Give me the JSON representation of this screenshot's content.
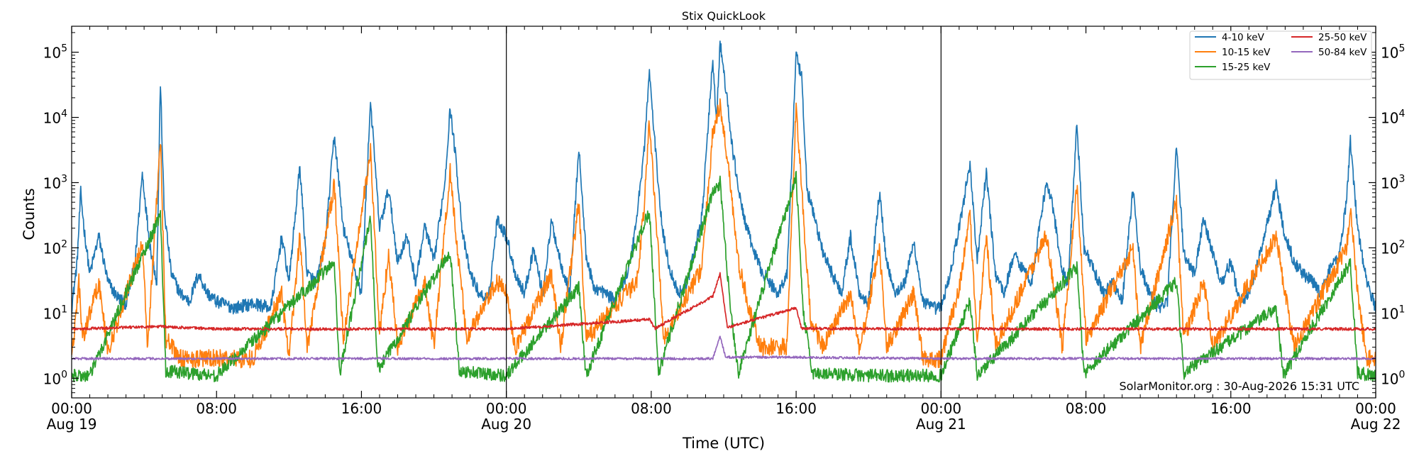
{
  "chart_data": {
    "type": "line",
    "title": "Stix QuickLook",
    "xlabel": "Time (UTC)",
    "ylabel": "Counts",
    "yscale": "log",
    "ylim": [
      0.5,
      250000
    ],
    "xlim_hours": [
      0,
      72
    ],
    "grid": false,
    "legend_position": "top-right",
    "x_ticks": [
      {
        "h": 0,
        "time": "00:00",
        "date": "Aug 19"
      },
      {
        "h": 8,
        "time": "08:00",
        "date": ""
      },
      {
        "h": 16,
        "time": "16:00",
        "date": ""
      },
      {
        "h": 24,
        "time": "00:00",
        "date": "Aug 20"
      },
      {
        "h": 32,
        "time": "08:00",
        "date": ""
      },
      {
        "h": 40,
        "time": "16:00",
        "date": ""
      },
      {
        "h": 48,
        "time": "00:00",
        "date": "Aug 21"
      },
      {
        "h": 56,
        "time": "08:00",
        "date": ""
      },
      {
        "h": 64,
        "time": "16:00",
        "date": ""
      },
      {
        "h": 72,
        "time": "00:00",
        "date": "Aug 22"
      }
    ],
    "y_ticks": [
      {
        "v": 1,
        "base": "10",
        "exp": "0"
      },
      {
        "v": 10,
        "base": "10",
        "exp": "1"
      },
      {
        "v": 100,
        "base": "10",
        "exp": "2"
      },
      {
        "v": 1000,
        "base": "10",
        "exp": "3"
      },
      {
        "v": 10000,
        "base": "10",
        "exp": "4"
      },
      {
        "v": 100000,
        "base": "10",
        "exp": "5"
      }
    ],
    "day_boundaries_hours": [
      24,
      48
    ],
    "annotation": "SolarMonitor.org : 30-Aug-2026 15:31 UTC",
    "series": [
      {
        "name": "4-10 keV",
        "color": "#1f77b4",
        "points": [
          [
            0,
            12
          ],
          [
            0.3,
            60
          ],
          [
            0.5,
            700
          ],
          [
            0.7,
            180
          ],
          [
            1.0,
            40
          ],
          [
            1.5,
            150
          ],
          [
            2.0,
            30
          ],
          [
            2.5,
            18
          ],
          [
            3.0,
            14
          ],
          [
            3.5,
            60
          ],
          [
            3.9,
            1400
          ],
          [
            4.3,
            120
          ],
          [
            4.7,
            30
          ],
          [
            4.9,
            35000
          ],
          [
            5.1,
            400
          ],
          [
            5.5,
            40
          ],
          [
            6.0,
            20
          ],
          [
            6.5,
            15
          ],
          [
            7.0,
            40
          ],
          [
            7.5,
            20
          ],
          [
            8.0,
            15
          ],
          [
            9.0,
            12
          ],
          [
            10.0,
            14
          ],
          [
            11.0,
            12
          ],
          [
            11.6,
            150
          ],
          [
            12.0,
            30
          ],
          [
            12.6,
            1800
          ],
          [
            13.0,
            40
          ],
          [
            13.5,
            30
          ],
          [
            14.0,
            120
          ],
          [
            14.5,
            5500
          ],
          [
            15.0,
            200
          ],
          [
            15.5,
            60
          ],
          [
            16.0,
            20
          ],
          [
            16.5,
            18000
          ],
          [
            17.0,
            200
          ],
          [
            17.5,
            800
          ],
          [
            18.0,
            60
          ],
          [
            18.5,
            150
          ],
          [
            19.0,
            30
          ],
          [
            19.5,
            220
          ],
          [
            20.0,
            60
          ],
          [
            20.6,
            1000
          ],
          [
            20.9,
            14000
          ],
          [
            21.2,
            2500
          ],
          [
            21.6,
            150
          ],
          [
            22.0,
            40
          ],
          [
            22.5,
            20
          ],
          [
            23.0,
            15
          ],
          [
            23.5,
            280
          ],
          [
            24.0,
            150
          ],
          [
            24.5,
            40
          ],
          [
            25.0,
            20
          ],
          [
            25.5,
            100
          ],
          [
            26.0,
            20
          ],
          [
            26.5,
            250
          ],
          [
            27.0,
            60
          ],
          [
            27.5,
            20
          ],
          [
            28.0,
            3500
          ],
          [
            28.4,
            80
          ],
          [
            28.8,
            25
          ],
          [
            29.5,
            20
          ],
          [
            30.0,
            15
          ],
          [
            30.8,
            50
          ],
          [
            31.2,
            300
          ],
          [
            31.6,
            3000
          ],
          [
            31.9,
            50000
          ],
          [
            32.2,
            4000
          ],
          [
            32.6,
            200
          ],
          [
            33.0,
            50
          ],
          [
            33.5,
            20
          ],
          [
            34.0,
            30
          ],
          [
            34.8,
            300
          ],
          [
            35.4,
            80000
          ],
          [
            35.6,
            8000
          ],
          [
            35.8,
            140000
          ],
          [
            36.1,
            30000
          ],
          [
            36.5,
            3000
          ],
          [
            37.0,
            400
          ],
          [
            37.5,
            120
          ],
          [
            38.0,
            50
          ],
          [
            38.5,
            30
          ],
          [
            39.0,
            20
          ],
          [
            39.5,
            40
          ],
          [
            40.0,
            90000
          ],
          [
            40.3,
            40000
          ],
          [
            40.6,
            800
          ],
          [
            41.0,
            300
          ],
          [
            41.5,
            80
          ],
          [
            42.0,
            40
          ],
          [
            42.5,
            20
          ],
          [
            43.0,
            150
          ],
          [
            43.5,
            20
          ],
          [
            44.0,
            15
          ],
          [
            44.6,
            700
          ],
          [
            45.0,
            60
          ],
          [
            45.5,
            20
          ],
          [
            46.0,
            30
          ],
          [
            46.5,
            120
          ],
          [
            47.0,
            15
          ],
          [
            47.5,
            12
          ],
          [
            48.0,
            12
          ],
          [
            48.5,
            40
          ],
          [
            49.0,
            200
          ],
          [
            49.6,
            2000
          ],
          [
            50.0,
            60
          ],
          [
            50.5,
            1500
          ],
          [
            51.0,
            40
          ],
          [
            51.5,
            20
          ],
          [
            52.0,
            80
          ],
          [
            52.5,
            50
          ],
          [
            53.0,
            30
          ],
          [
            53.8,
            1000
          ],
          [
            54.2,
            400
          ],
          [
            54.6,
            60
          ],
          [
            55.0,
            25
          ],
          [
            55.5,
            8000
          ],
          [
            55.9,
            100
          ],
          [
            56.5,
            40
          ],
          [
            57.0,
            20
          ],
          [
            57.5,
            30
          ],
          [
            58.0,
            15
          ],
          [
            58.6,
            800
          ],
          [
            59.0,
            50
          ],
          [
            59.5,
            20
          ],
          [
            60.0,
            12
          ],
          [
            60.5,
            15
          ],
          [
            61.0,
            4000
          ],
          [
            61.4,
            80
          ],
          [
            62.0,
            40
          ],
          [
            62.5,
            300
          ],
          [
            63.0,
            80
          ],
          [
            63.5,
            30
          ],
          [
            64.0,
            60
          ],
          [
            64.5,
            15
          ],
          [
            65.0,
            20
          ],
          [
            65.5,
            60
          ],
          [
            66.5,
            900
          ],
          [
            66.9,
            200
          ],
          [
            67.5,
            60
          ],
          [
            68.0,
            40
          ],
          [
            68.5,
            30
          ],
          [
            69.0,
            20
          ],
          [
            69.5,
            50
          ],
          [
            70.0,
            80
          ],
          [
            70.4,
            600
          ],
          [
            70.6,
            4500
          ],
          [
            71.0,
            200
          ],
          [
            71.5,
            30
          ],
          [
            72.0,
            12
          ]
        ]
      },
      {
        "name": "10-15 keV",
        "color": "#ff7f0e",
        "points": [
          [
            0,
            2
          ],
          [
            0.4,
            30
          ],
          [
            0.6,
            4
          ],
          [
            1.5,
            30
          ],
          [
            2.0,
            2.5
          ],
          [
            3.9,
            120
          ],
          [
            4.2,
            3
          ],
          [
            4.9,
            5000
          ],
          [
            5.2,
            4
          ],
          [
            6.0,
            2
          ],
          [
            8.0,
            2
          ],
          [
            10.0,
            2
          ],
          [
            11.6,
            20
          ],
          [
            12.0,
            2
          ],
          [
            12.6,
            150
          ],
          [
            13.0,
            3
          ],
          [
            14.5,
            900
          ],
          [
            15.0,
            4
          ],
          [
            16.5,
            3000
          ],
          [
            17.0,
            5
          ],
          [
            17.5,
            80
          ],
          [
            18.0,
            3
          ],
          [
            19.5,
            30
          ],
          [
            20.0,
            3
          ],
          [
            20.9,
            1500
          ],
          [
            21.3,
            100
          ],
          [
            21.8,
            4
          ],
          [
            23.5,
            30
          ],
          [
            24.0,
            20
          ],
          [
            24.5,
            3
          ],
          [
            26.5,
            40
          ],
          [
            27.0,
            3
          ],
          [
            28.0,
            500
          ],
          [
            28.4,
            4
          ],
          [
            31.2,
            30
          ],
          [
            31.6,
            400
          ],
          [
            31.9,
            9000
          ],
          [
            32.3,
            200
          ],
          [
            32.7,
            4
          ],
          [
            34.8,
            50
          ],
          [
            35.4,
            6000
          ],
          [
            35.8,
            15000
          ],
          [
            36.3,
            1500
          ],
          [
            36.8,
            60
          ],
          [
            37.4,
            12
          ],
          [
            38.0,
            3
          ],
          [
            39.5,
            3
          ],
          [
            40.0,
            16000
          ],
          [
            40.4,
            300
          ],
          [
            40.8,
            8
          ],
          [
            41.5,
            3
          ],
          [
            43.0,
            20
          ],
          [
            43.5,
            2.5
          ],
          [
            44.6,
            100
          ],
          [
            45.0,
            3
          ],
          [
            46.5,
            20
          ],
          [
            47.0,
            2
          ],
          [
            48.0,
            2
          ],
          [
            49.0,
            25
          ],
          [
            49.6,
            300
          ],
          [
            50.0,
            4
          ],
          [
            50.5,
            150
          ],
          [
            51.0,
            3
          ],
          [
            53.8,
            150
          ],
          [
            54.2,
            30
          ],
          [
            54.7,
            3
          ],
          [
            55.5,
            900
          ],
          [
            56.0,
            4
          ],
          [
            58.6,
            100
          ],
          [
            59.0,
            3
          ],
          [
            61.0,
            500
          ],
          [
            61.4,
            4
          ],
          [
            62.5,
            30
          ],
          [
            63.0,
            3
          ],
          [
            66.5,
            150
          ],
          [
            66.9,
            30
          ],
          [
            67.5,
            3
          ],
          [
            70.4,
            100
          ],
          [
            70.6,
            450
          ],
          [
            71.0,
            20
          ],
          [
            71.5,
            2
          ],
          [
            72.0,
            2
          ]
        ]
      },
      {
        "name": "15-25 keV",
        "color": "#2ca02c",
        "points": [
          [
            0,
            1.1
          ],
          [
            1.0,
            1.1
          ],
          [
            4.9,
            320
          ],
          [
            5.2,
            1.3
          ],
          [
            8.0,
            1.1
          ],
          [
            14.5,
            60
          ],
          [
            14.8,
            1.2
          ],
          [
            16.5,
            300
          ],
          [
            16.9,
            1.3
          ],
          [
            20.9,
            90
          ],
          [
            21.4,
            1.3
          ],
          [
            24.0,
            1.1
          ],
          [
            28.0,
            25
          ],
          [
            28.4,
            1.1
          ],
          [
            31.9,
            380
          ],
          [
            32.4,
            1.2
          ],
          [
            35.4,
            700
          ],
          [
            35.8,
            1000
          ],
          [
            36.3,
            20
          ],
          [
            36.8,
            1.2
          ],
          [
            40.0,
            1200
          ],
          [
            40.4,
            10
          ],
          [
            40.9,
            1.2
          ],
          [
            44.0,
            1.1
          ],
          [
            48.0,
            1.1
          ],
          [
            49.6,
            15
          ],
          [
            50.0,
            1.1
          ],
          [
            55.5,
            50
          ],
          [
            55.9,
            1.2
          ],
          [
            61.0,
            30
          ],
          [
            61.4,
            1.2
          ],
          [
            66.5,
            12
          ],
          [
            66.9,
            1.1
          ],
          [
            70.6,
            60
          ],
          [
            71.0,
            1.2
          ],
          [
            72.0,
            1.1
          ]
        ]
      },
      {
        "name": "25-50 keV",
        "color": "#d62728",
        "points": [
          [
            0,
            5.7
          ],
          [
            4.9,
            6.2
          ],
          [
            8.0,
            5.7
          ],
          [
            16.0,
            5.7
          ],
          [
            24.0,
            5.7
          ],
          [
            31.9,
            8.0
          ],
          [
            32.2,
            5.8
          ],
          [
            35.4,
            18
          ],
          [
            35.8,
            40
          ],
          [
            36.2,
            6.0
          ],
          [
            40.0,
            12
          ],
          [
            40.3,
            5.8
          ],
          [
            48.0,
            5.7
          ],
          [
            56.0,
            5.7
          ],
          [
            64.0,
            5.7
          ],
          [
            72.0,
            5.7
          ]
        ]
      },
      {
        "name": "50-84 keV",
        "color": "#9467bd",
        "points": [
          [
            0,
            2.0
          ],
          [
            8.0,
            2.0
          ],
          [
            16.0,
            2.0
          ],
          [
            24.0,
            2.0
          ],
          [
            35.4,
            2.0
          ],
          [
            35.8,
            4.5
          ],
          [
            36.1,
            2.1
          ],
          [
            40.0,
            2.1
          ],
          [
            48.0,
            2.0
          ],
          [
            56.0,
            2.0
          ],
          [
            64.0,
            2.0
          ],
          [
            72.0,
            2.0
          ]
        ]
      }
    ]
  }
}
